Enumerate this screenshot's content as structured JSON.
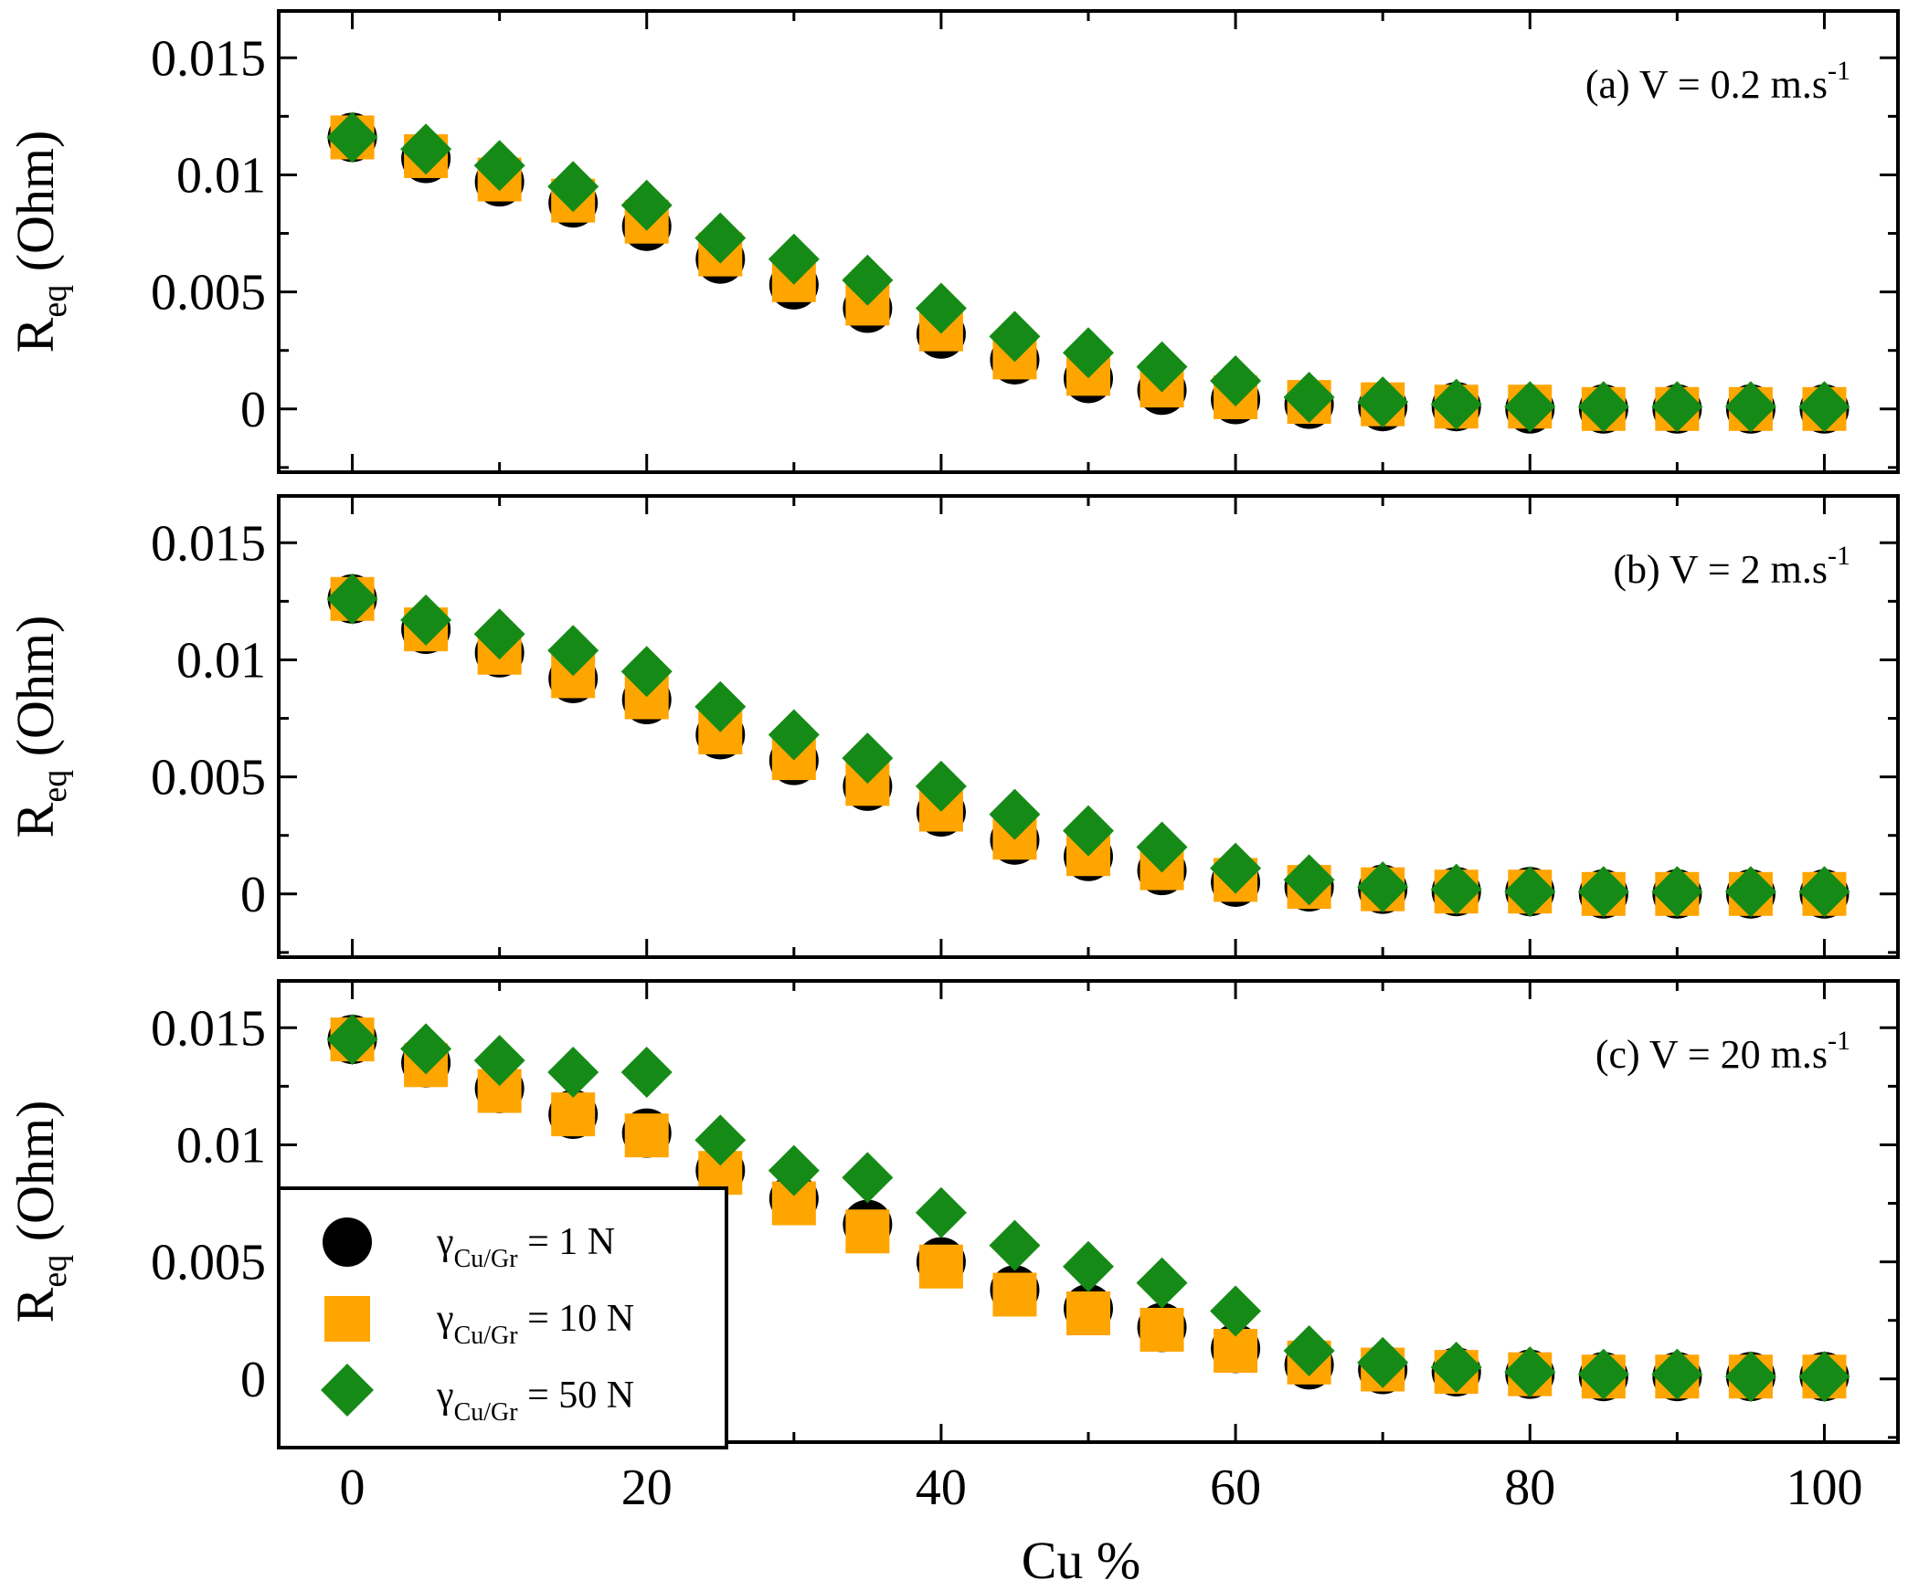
{
  "colors": {
    "series_1": "#000000",
    "series_2": "#FFA500",
    "series_3": "#168A16",
    "axis": "#000000",
    "background": "#ffffff"
  },
  "chart_data": [
    {
      "type": "scatter",
      "annotation": "(a) V = 0.2 m.s",
      "annotation_sup": "-1",
      "xlabel": "Cu %",
      "ylabel_main": "R",
      "ylabel_sub": "eq",
      "ylabel_unit": "(Ohm)",
      "xlim": [
        -5,
        105
      ],
      "ylim": [
        -0.0027,
        0.017
      ],
      "xticks": [
        0,
        20,
        40,
        60,
        80,
        100
      ],
      "xtick_labels": [
        "0",
        "20",
        "40",
        "60",
        "80",
        "100"
      ],
      "yticks": [
        0,
        0.005,
        0.01,
        0.015
      ],
      "ytick_labels": [
        "0",
        "0.005",
        "0.01",
        "0.015"
      ],
      "x": [
        0,
        5,
        10,
        15,
        20,
        25,
        30,
        35,
        40,
        45,
        50,
        55,
        60,
        65,
        70,
        75,
        80,
        85,
        90,
        95,
        100
      ],
      "series": [
        {
          "name": "γCu/Gr = 1 N",
          "marker": "circle",
          "values": [
            0.0116,
            0.0107,
            0.0097,
            0.0088,
            0.0078,
            0.0064,
            0.0053,
            0.0043,
            0.0032,
            0.0021,
            0.0013,
            0.0008,
            0.0004,
            0.0002,
            0.0001,
            0.0001,
            0.0,
            0.0,
            0.0,
            0.0,
            0.0
          ]
        },
        {
          "name": "γCu/Gr = 10 N",
          "marker": "square",
          "values": [
            0.0116,
            0.0108,
            0.0098,
            0.0089,
            0.008,
            0.0066,
            0.0055,
            0.0045,
            0.0034,
            0.0022,
            0.0015,
            0.001,
            0.0005,
            0.0003,
            0.0002,
            0.0001,
            0.0001,
            0.0,
            0.0,
            0.0,
            0.0
          ]
        },
        {
          "name": "γCu/Gr = 50 N",
          "marker": "diamond",
          "values": [
            0.0116,
            0.0111,
            0.0104,
            0.0095,
            0.0087,
            0.0073,
            0.0064,
            0.0055,
            0.0043,
            0.0031,
            0.0024,
            0.0018,
            0.0012,
            0.0005,
            0.0003,
            0.0002,
            0.0001,
            0.0001,
            0.0001,
            0.0001,
            0.0001
          ]
        }
      ]
    },
    {
      "type": "scatter",
      "annotation": "(b) V = 2 m.s",
      "annotation_sup": "-1",
      "xlabel": "Cu %",
      "ylabel_main": "R",
      "ylabel_sub": "eq",
      "ylabel_unit": "(Ohm)",
      "xlim": [
        -5,
        105
      ],
      "ylim": [
        -0.0027,
        0.017
      ],
      "xticks": [
        0,
        20,
        40,
        60,
        80,
        100
      ],
      "xtick_labels": [
        "0",
        "20",
        "40",
        "60",
        "80",
        "100"
      ],
      "yticks": [
        0,
        0.005,
        0.01,
        0.015
      ],
      "ytick_labels": [
        "0",
        "0.005",
        "0.01",
        "0.015"
      ],
      "x": [
        0,
        5,
        10,
        15,
        20,
        25,
        30,
        35,
        40,
        45,
        50,
        55,
        60,
        65,
        70,
        75,
        80,
        85,
        90,
        95,
        100
      ],
      "series": [
        {
          "name": "γCu/Gr = 1 N",
          "marker": "circle",
          "values": [
            0.0126,
            0.0113,
            0.0103,
            0.0092,
            0.0083,
            0.0068,
            0.0057,
            0.0046,
            0.0035,
            0.0023,
            0.0016,
            0.001,
            0.0005,
            0.0003,
            0.0002,
            0.0001,
            0.0001,
            0.0,
            0.0,
            0.0,
            0.0
          ]
        },
        {
          "name": "γCu/Gr = 10 N",
          "marker": "square",
          "values": [
            0.0126,
            0.0113,
            0.0103,
            0.0093,
            0.0084,
            0.0069,
            0.0058,
            0.0047,
            0.0036,
            0.0024,
            0.0017,
            0.0011,
            0.0006,
            0.0003,
            0.0002,
            0.0001,
            0.0001,
            0.0,
            0.0,
            0.0,
            0.0
          ]
        },
        {
          "name": "γCu/Gr = 50 N",
          "marker": "diamond",
          "values": [
            0.0126,
            0.0117,
            0.0111,
            0.0104,
            0.0095,
            0.008,
            0.0068,
            0.0058,
            0.0046,
            0.0034,
            0.0027,
            0.002,
            0.0011,
            0.0006,
            0.0003,
            0.0002,
            0.0001,
            0.0001,
            0.0001,
            0.0001,
            0.0001
          ]
        }
      ]
    },
    {
      "type": "scatter",
      "annotation": "(c) V = 20 m.s",
      "annotation_sup": "-1",
      "xlabel": "Cu %",
      "ylabel_main": "R",
      "ylabel_sub": "eq",
      "ylabel_unit": "(Ohm)",
      "xlim": [
        -5,
        105
      ],
      "ylim": [
        -0.0027,
        0.017
      ],
      "xticks": [
        0,
        20,
        40,
        60,
        80,
        100
      ],
      "xtick_labels": [
        "0",
        "20",
        "40",
        "60",
        "80",
        "100"
      ],
      "yticks": [
        0,
        0.005,
        0.01,
        0.015
      ],
      "ytick_labels": [
        "0",
        "0.005",
        "0.01",
        "0.015"
      ],
      "x": [
        0,
        5,
        10,
        15,
        20,
        25,
        30,
        35,
        40,
        45,
        50,
        55,
        60,
        65,
        70,
        75,
        80,
        85,
        90,
        95,
        100
      ],
      "series": [
        {
          "name": "γCu/Gr = 1 N",
          "marker": "circle",
          "values": [
            0.0145,
            0.0135,
            0.0124,
            0.0113,
            0.0105,
            0.0089,
            0.0077,
            0.0066,
            0.005,
            0.0038,
            0.003,
            0.0022,
            0.0013,
            0.0006,
            0.0004,
            0.0003,
            0.0002,
            0.0001,
            0.0001,
            0.0001,
            0.0001
          ]
        },
        {
          "name": "γCu/Gr = 10 N",
          "marker": "square",
          "values": [
            0.0145,
            0.0134,
            0.0123,
            0.0113,
            0.0104,
            0.0088,
            0.0075,
            0.0063,
            0.0048,
            0.0036,
            0.0028,
            0.0021,
            0.0012,
            0.0007,
            0.0004,
            0.0003,
            0.0002,
            0.0001,
            0.0001,
            0.0001,
            0.0001
          ]
        },
        {
          "name": "γCu/Gr = 50 N",
          "marker": "diamond",
          "values": [
            0.0145,
            0.0141,
            0.0136,
            0.0131,
            0.0131,
            0.0102,
            0.0089,
            0.0086,
            0.0071,
            0.0057,
            0.0048,
            0.0041,
            0.0029,
            0.0012,
            0.0007,
            0.0005,
            0.0003,
            0.0002,
            0.0002,
            0.0001,
            0.0001
          ]
        }
      ]
    }
  ],
  "legend": {
    "items": [
      {
        "symbol": "γ",
        "sub": "Cu/Gr",
        "text": " = 1 N",
        "marker": "circle"
      },
      {
        "symbol": "γ",
        "sub": "Cu/Gr",
        "text": " = 10 N",
        "marker": "square"
      },
      {
        "symbol": "γ",
        "sub": "Cu/Gr",
        "text": " = 50 N",
        "marker": "diamond"
      }
    ]
  }
}
